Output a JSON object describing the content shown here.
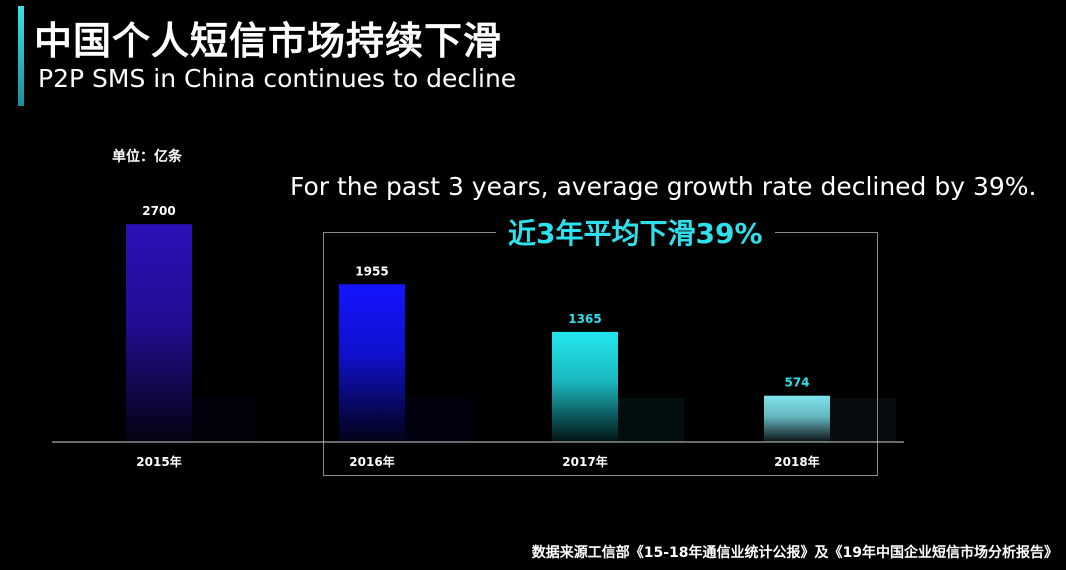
{
  "title_zh": "中国个人短信市场持续下滑",
  "title_en": "P2P SMS in China continues to decline",
  "unit_label": "单位：亿条",
  "note_en": "For the past 3 years, average growth rate declined by 39%.",
  "note_zh": "近3年平均下滑39%",
  "source": "数据来源工信部《15-18年通信业统计公报》及《19年中国企业短信市场分析报告》",
  "colors": {
    "accent": "#2de0ec",
    "bar_2015": "#2a10b8",
    "bar_2016": "#1414ff",
    "bar_2017": "#22e6ee",
    "bar_2018": "#7fe4ee"
  },
  "chart_data": {
    "type": "bar",
    "categories": [
      "2015年",
      "2016年",
      "2017年",
      "2018年"
    ],
    "values": [
      2700,
      1955,
      1365,
      574
    ],
    "value_labels": [
      "2700",
      "1955",
      "1365",
      "574"
    ],
    "ylim": [
      0,
      3000
    ],
    "grid": false,
    "legend": "none"
  }
}
